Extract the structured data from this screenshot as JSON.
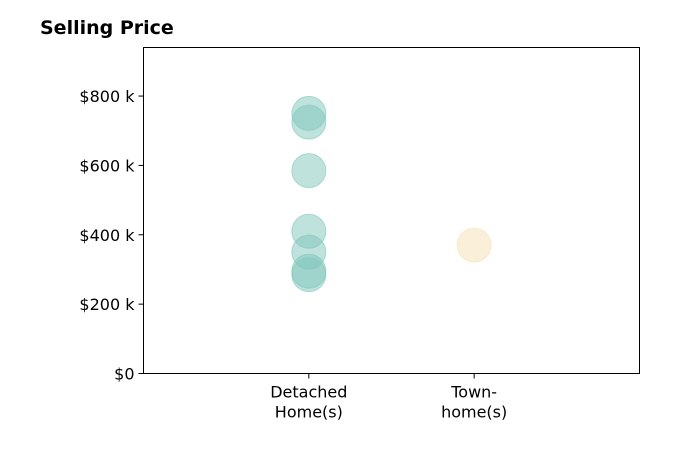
{
  "chart_data": {
    "type": "scatter",
    "title": "Selling Price",
    "xlabel": "",
    "ylabel": "",
    "categories": [
      [
        "Detached",
        "Home(s)"
      ],
      [
        "Town-",
        "home(s)"
      ]
    ],
    "xlim": [
      0,
      3
    ],
    "ylim": [
      0,
      940000
    ],
    "yticks": [
      0,
      200000,
      400000,
      600000,
      800000
    ],
    "ytick_labels": [
      "$0",
      "$200 k",
      "$400 k",
      "$600 k",
      "$800 k"
    ],
    "grid": false,
    "legend": "none",
    "series": [
      {
        "category_index": 0,
        "color": "#7fc6bc",
        "values": [
          750000,
          725000,
          585000,
          410000,
          350000,
          295000,
          285000
        ]
      },
      {
        "category_index": 1,
        "color": "#f5e2b6",
        "values": [
          370000
        ]
      }
    ]
  }
}
